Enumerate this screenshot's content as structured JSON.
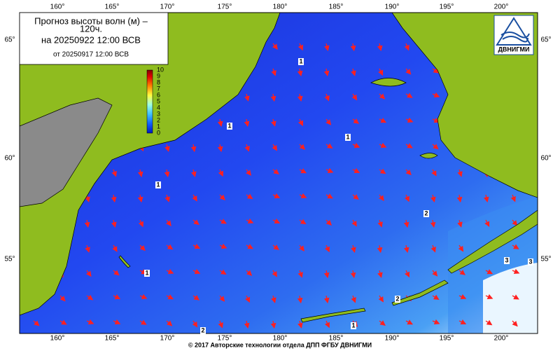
{
  "title": {
    "line1": "Прогноз высоты волн (м) –",
    "line2": "120ч.",
    "valid": "на 20250922 12:00 ВСВ",
    "issued": "от 20250917 12:00 ВСВ"
  },
  "colorbar": {
    "labels": [
      "10",
      "9",
      "8",
      "7",
      "6",
      "5",
      "4",
      "3",
      "2",
      "1",
      "0"
    ]
  },
  "logo": "ДВНИГМИ",
  "longitudes": [
    "160°",
    "165°",
    "170°",
    "175°",
    "180°",
    "185°",
    "190°",
    "195°",
    "200°"
  ],
  "latitudes": [
    "65°",
    "60°",
    "55°"
  ],
  "contour_labels": [
    "1",
    "1",
    "1",
    "1",
    "2",
    "1",
    "2",
    "2",
    "1",
    "3",
    "3"
  ],
  "footer": "© 2017 Авторские технологии отдела ДПП ФГБУ ДВНИГМИ"
}
